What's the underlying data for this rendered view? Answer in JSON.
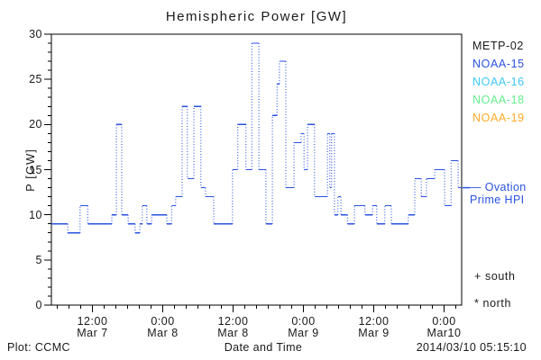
{
  "title": "Hemispheric Power [GW]",
  "colors": {
    "axis": "#000000",
    "curve": "#2a52e0",
    "text": "#1a1a1a"
  },
  "legend": {
    "satellites": [
      {
        "label": "METP-02",
        "color": "#1a1a1a"
      },
      {
        "label": "NOAA-15",
        "color": "#2a52e0"
      },
      {
        "label": "NOAA-16",
        "color": "#3fc8f0"
      },
      {
        "label": "NOAA-18",
        "color": "#63ee8c"
      },
      {
        "label": "NOAA-19",
        "color": "#ffaa28"
      }
    ]
  },
  "ovation": {
    "line1": "— Ovation",
    "line2": "Prime HPI",
    "color": "#2a52e0"
  },
  "markers": {
    "south": "+ south",
    "north": "* north"
  },
  "footer": {
    "plot_credit": "Plot: CCMC",
    "timestamp": "2014/03/10 05:15:10"
  },
  "chart_data": {
    "type": "line",
    "subtype": "step-dotted",
    "title": "Hemispheric Power [GW]",
    "xlabel": "Date and Time",
    "ylabel": "P [GW]",
    "ylim": [
      0,
      30
    ],
    "y_major_ticks": [
      0,
      5,
      10,
      15,
      20,
      25,
      30
    ],
    "y_minor_interval": 1,
    "x_hours_span": 70,
    "x_start_label": "Mar 7 ~05:00",
    "x_minor_interval_hours": 2,
    "grid": false,
    "legend_position": "right",
    "x_major_ticks": [
      {
        "t": 7,
        "time": "12:00",
        "date": "Mar 7"
      },
      {
        "t": 19,
        "time": "0:00",
        "date": "Mar 8"
      },
      {
        "t": 31,
        "time": "12:00",
        "date": "Mar 8"
      },
      {
        "t": 43,
        "time": "0:00",
        "date": "Mar 9"
      },
      {
        "t": 55,
        "time": "12:00",
        "date": "Mar 9"
      },
      {
        "t": 67,
        "time": "0:00",
        "date": "Mar10"
      }
    ],
    "series": [
      {
        "name": "Ovation Prime HPI",
        "units": "GW",
        "color": "#2a52e0",
        "points": [
          [
            0,
            9
          ],
          [
            2.8,
            8
          ],
          [
            4.9,
            11
          ],
          [
            6.2,
            9
          ],
          [
            10.3,
            10
          ],
          [
            11.1,
            20
          ],
          [
            12.0,
            10
          ],
          [
            13.1,
            9
          ],
          [
            14.3,
            8
          ],
          [
            15.1,
            9
          ],
          [
            15.5,
            11
          ],
          [
            16.3,
            9
          ],
          [
            17.1,
            10
          ],
          [
            19.7,
            9
          ],
          [
            20.5,
            11
          ],
          [
            21.2,
            12
          ],
          [
            22.3,
            22
          ],
          [
            23.2,
            14
          ],
          [
            24.3,
            22
          ],
          [
            25.5,
            13
          ],
          [
            26.3,
            12
          ],
          [
            27.7,
            9
          ],
          [
            30.9,
            15
          ],
          [
            31.8,
            20
          ],
          [
            33.2,
            15
          ],
          [
            34.2,
            29
          ],
          [
            35.4,
            15
          ],
          [
            36.6,
            9
          ],
          [
            37.7,
            21
          ],
          [
            38.5,
            24.5
          ],
          [
            38.9,
            27
          ],
          [
            40.0,
            13
          ],
          [
            41.4,
            18
          ],
          [
            42.6,
            19
          ],
          [
            43.1,
            15
          ],
          [
            43.7,
            20
          ],
          [
            44.9,
            12
          ],
          [
            47.1,
            19
          ],
          [
            47.5,
            13
          ],
          [
            47.8,
            19
          ],
          [
            48.3,
            10
          ],
          [
            48.9,
            12
          ],
          [
            49.4,
            10
          ],
          [
            50.5,
            9
          ],
          [
            51.7,
            11
          ],
          [
            53.5,
            10
          ],
          [
            54.8,
            11
          ],
          [
            55.5,
            9
          ],
          [
            56.9,
            11
          ],
          [
            58.0,
            9
          ],
          [
            60.9,
            10
          ],
          [
            62.0,
            14
          ],
          [
            63.1,
            12
          ],
          [
            64.0,
            14
          ],
          [
            65.4,
            15
          ],
          [
            67.1,
            11
          ],
          [
            68.2,
            16
          ],
          [
            69.4,
            13
          ],
          [
            70,
            13
          ]
        ],
        "final_value_gw": 13
      }
    ]
  }
}
